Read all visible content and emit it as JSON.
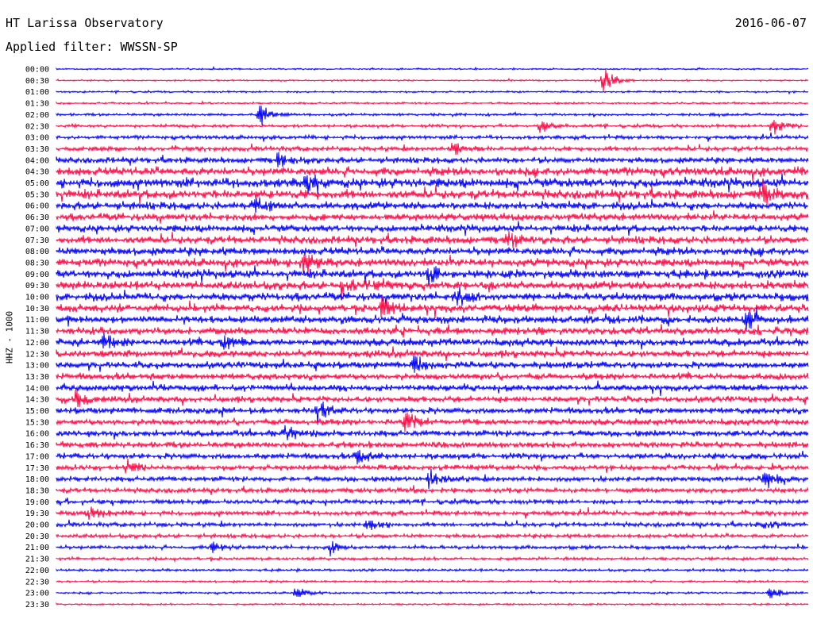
{
  "header": {
    "station": "HT Larissa Observatory",
    "filter": "Applied filter: WWSSN-SP",
    "date": "2016-06-07"
  },
  "chart_data": {
    "type": "line",
    "ylabel": "HHZ - 1000",
    "rows": [
      "00:00",
      "00:30",
      "01:00",
      "01:30",
      "02:00",
      "02:30",
      "03:00",
      "03:30",
      "04:00",
      "04:30",
      "05:00",
      "05:30",
      "06:00",
      "06:30",
      "07:00",
      "07:30",
      "08:00",
      "08:30",
      "09:00",
      "09:30",
      "10:00",
      "10:30",
      "11:00",
      "11:30",
      "12:00",
      "12:30",
      "13:00",
      "13:30",
      "14:00",
      "14:30",
      "15:00",
      "15:30",
      "16:00",
      "16:30",
      "17:00",
      "17:30",
      "18:00",
      "18:30",
      "19:00",
      "19:30",
      "20:00",
      "20:30",
      "21:00",
      "21:30",
      "22:00",
      "22:30",
      "23:00",
      "23:30"
    ],
    "row_colors": [
      "#0000ff",
      "#ff0a46"
    ],
    "noise_amplitude": [
      1.0,
      1.0,
      1.2,
      1.3,
      1.6,
      2.0,
      2.4,
      3.0,
      3.8,
      5.5,
      6.0,
      5.8,
      5.0,
      4.6,
      4.6,
      5.0,
      5.2,
      5.2,
      5.4,
      5.4,
      5.2,
      5.0,
      5.0,
      4.8,
      4.8,
      4.6,
      4.3,
      4.2,
      4.0,
      4.0,
      4.0,
      4.0,
      4.0,
      3.8,
      3.8,
      3.5,
      3.4,
      3.2,
      3.0,
      3.0,
      2.8,
      2.6,
      2.4,
      2.0,
      1.6,
      1.4,
      1.3,
      1.2
    ],
    "events": [
      {
        "row": 1,
        "x": 760,
        "amplitude": 24
      },
      {
        "row": 4,
        "x": 327,
        "amplitude": 18
      },
      {
        "row": 5,
        "x": 972,
        "amplitude": 16
      },
      {
        "row": 5,
        "x": 680,
        "amplitude": 10
      },
      {
        "row": 7,
        "x": 570,
        "amplitude": 12
      },
      {
        "row": 8,
        "x": 350,
        "amplitude": 12
      },
      {
        "row": 10,
        "x": 385,
        "amplitude": 14
      },
      {
        "row": 11,
        "x": 960,
        "amplitude": 18
      },
      {
        "row": 12,
        "x": 320,
        "amplitude": 14
      },
      {
        "row": 15,
        "x": 640,
        "amplitude": 14
      },
      {
        "row": 17,
        "x": 380,
        "amplitude": 16
      },
      {
        "row": 18,
        "x": 540,
        "amplitude": 16
      },
      {
        "row": 19,
        "x": 430,
        "amplitude": 14
      },
      {
        "row": 20,
        "x": 575,
        "amplitude": 16
      },
      {
        "row": 21,
        "x": 480,
        "amplitude": 16
      },
      {
        "row": 22,
        "x": 940,
        "amplitude": 14
      },
      {
        "row": 24,
        "x": 130,
        "amplitude": 14
      },
      {
        "row": 24,
        "x": 280,
        "amplitude": 14
      },
      {
        "row": 26,
        "x": 520,
        "amplitude": 14
      },
      {
        "row": 29,
        "x": 95,
        "amplitude": 12
      },
      {
        "row": 30,
        "x": 400,
        "amplitude": 14
      },
      {
        "row": 31,
        "x": 510,
        "amplitude": 16
      },
      {
        "row": 32,
        "x": 360,
        "amplitude": 12
      },
      {
        "row": 34,
        "x": 450,
        "amplitude": 14
      },
      {
        "row": 35,
        "x": 160,
        "amplitude": 12
      },
      {
        "row": 36,
        "x": 963,
        "amplitude": 16
      },
      {
        "row": 36,
        "x": 540,
        "amplitude": 12
      },
      {
        "row": 39,
        "x": 108,
        "amplitude": 16
      },
      {
        "row": 40,
        "x": 963,
        "amplitude": 8
      },
      {
        "row": 40,
        "x": 463,
        "amplitude": 10
      },
      {
        "row": 42,
        "x": 415,
        "amplitude": 12
      },
      {
        "row": 42,
        "x": 268,
        "amplitude": 8
      },
      {
        "row": 46,
        "x": 372,
        "amplitude": 10
      },
      {
        "row": 46,
        "x": 970,
        "amplitude": 10
      }
    ]
  }
}
